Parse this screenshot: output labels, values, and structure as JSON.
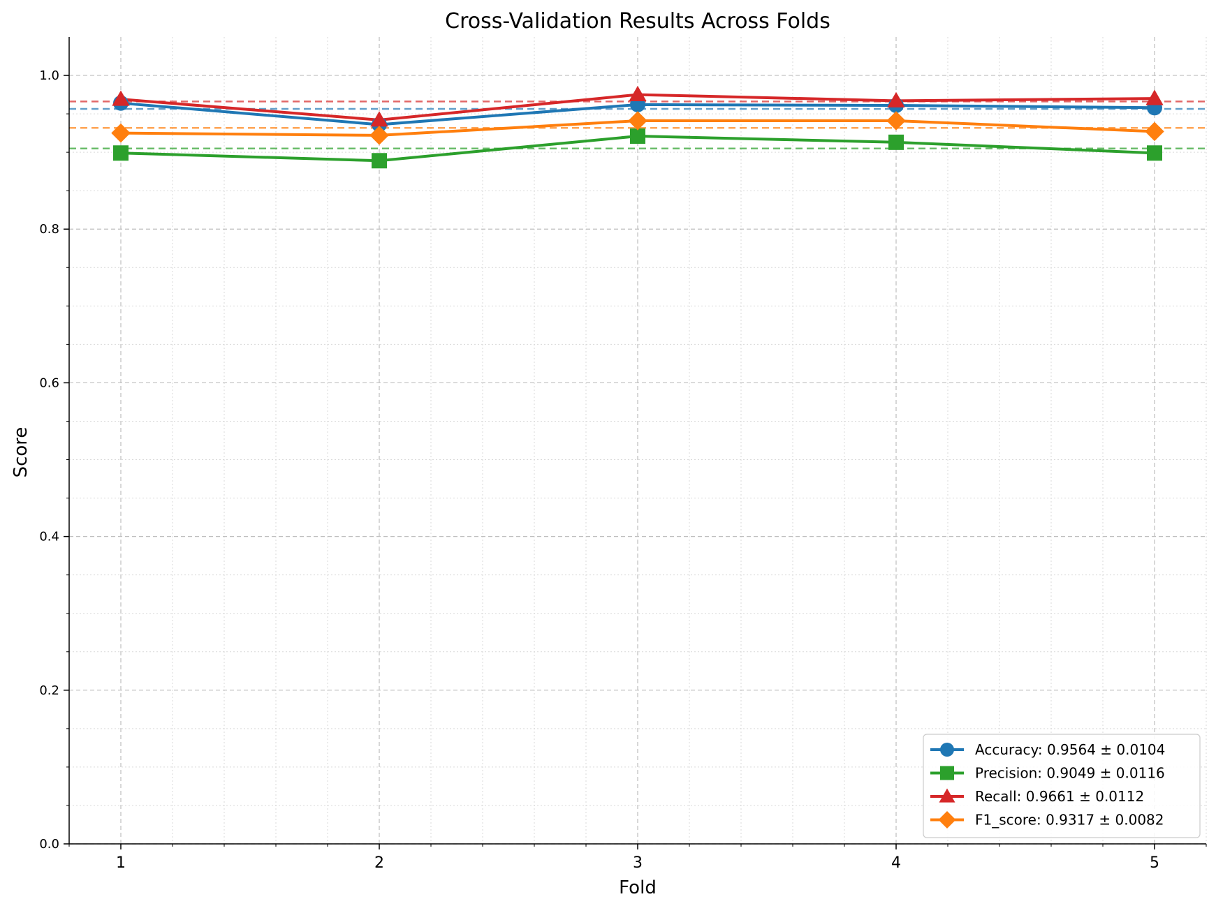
{
  "chart_data": {
    "type": "line",
    "title": "Cross-Validation Results Across Folds",
    "xlabel": "Fold",
    "ylabel": "Score",
    "x": [
      1,
      2,
      3,
      4,
      5
    ],
    "xlim": [
      0.8,
      5.2
    ],
    "ylim": [
      0.0,
      1.05
    ],
    "x_ticks": [
      "1",
      "2",
      "3",
      "4",
      "5"
    ],
    "y_ticks": [
      "0.0",
      "0.2",
      "0.4",
      "0.6",
      "0.8",
      "1.0"
    ],
    "grid": true,
    "legend_position": "lower-right",
    "series": [
      {
        "name": "Accuracy",
        "legend_label": "Accuracy: 0.9564 ± 0.0104",
        "values": [
          0.964,
          0.936,
          0.962,
          0.961,
          0.958
        ],
        "mean": 0.9564,
        "color": "#1f77b4",
        "marker": "circle"
      },
      {
        "name": "Precision",
        "legend_label": "Precision: 0.9049 ± 0.0116",
        "values": [
          0.899,
          0.889,
          0.921,
          0.913,
          0.899
        ],
        "mean": 0.9049,
        "color": "#2ca02c",
        "marker": "square"
      },
      {
        "name": "Recall",
        "legend_label": "Recall: 0.9661 ± 0.0112",
        "values": [
          0.969,
          0.942,
          0.975,
          0.967,
          0.97
        ],
        "mean": 0.9661,
        "color": "#d62728",
        "marker": "triangle"
      },
      {
        "name": "F1_score",
        "legend_label": "F1_score: 0.9317 ± 0.0082",
        "values": [
          0.925,
          0.922,
          0.941,
          0.941,
          0.927
        ],
        "mean": 0.9317,
        "color": "#ff7f0e",
        "marker": "diamond"
      }
    ]
  }
}
